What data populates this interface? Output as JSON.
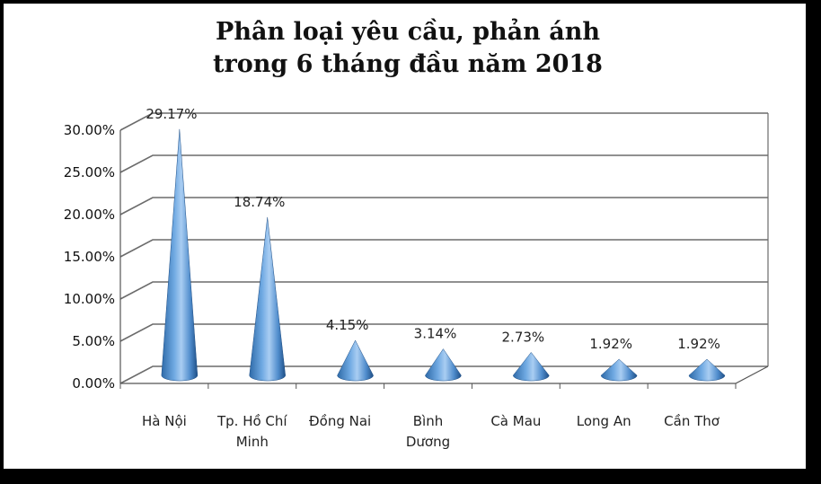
{
  "chart_data": {
    "type": "bar",
    "title_lines": [
      "Phân loại yêu cầu, phản ánh",
      "trong 6 tháng đầu năm 2018"
    ],
    "categories": [
      [
        "Hà Nội"
      ],
      [
        "Tp. Hồ Chí",
        "Minh"
      ],
      [
        "Đồng Nai"
      ],
      [
        "Bình",
        "Dương"
      ],
      [
        "Cà Mau"
      ],
      [
        "Long An"
      ],
      [
        "Cần Thơ"
      ]
    ],
    "values": [
      29.17,
      18.74,
      4.15,
      3.14,
      2.73,
      1.92,
      1.92
    ],
    "data_labels": [
      "29.17%",
      "18.74%",
      "4.15%",
      "3.14%",
      "2.73%",
      "1.92%",
      "1.92%"
    ],
    "yticks": [
      0,
      5,
      10,
      15,
      20,
      25,
      30
    ],
    "ytick_labels": [
      "0.00%",
      "5.00%",
      "10.00%",
      "15.00%",
      "20.00%",
      "25.00%",
      "30.00%"
    ],
    "ylim": [
      0,
      30
    ],
    "xlabel": "",
    "ylabel": "",
    "grid": true,
    "legend": "none",
    "bar_shape": "cone",
    "colors": {
      "bar_light": "#a9cdf2",
      "bar_mid": "#5b9bd5",
      "bar_dark": "#1f4f86",
      "grid": "#6b6b6b"
    }
  }
}
